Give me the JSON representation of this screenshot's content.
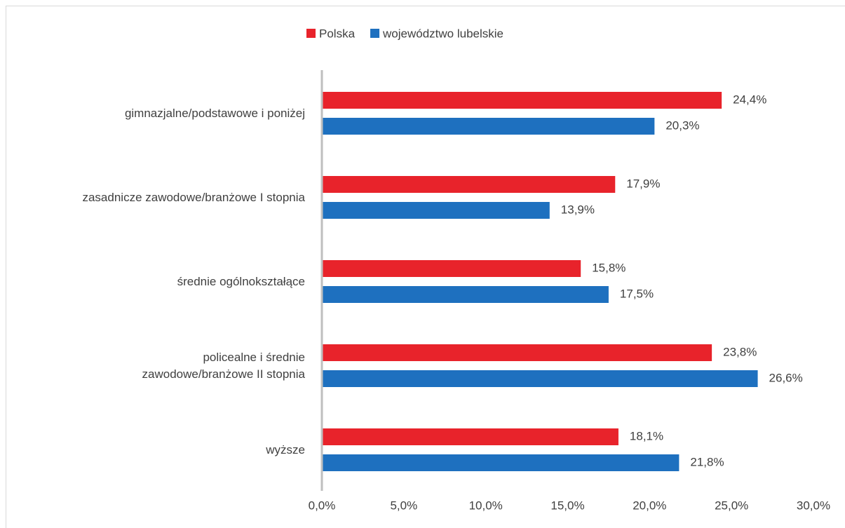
{
  "chart_data": {
    "type": "bar",
    "orientation": "horizontal",
    "categories": [
      "gimnazjalne/podstawowe i poniżej",
      "zasadnicze zawodowe/branżowe I stopnia",
      "średnie ogólnokształące",
      "policealne i średnie\nzawodowe/branżowe II stopnia",
      "wyższe"
    ],
    "series": [
      {
        "name": "Polska",
        "color": "#e8232b",
        "values": [
          24.4,
          17.9,
          15.8,
          23.8,
          18.1
        ],
        "value_labels": [
          "24,4%",
          "17,9%",
          "15,8%",
          "23,8%",
          "18,1%"
        ]
      },
      {
        "name": "województwo lubelskie",
        "color": "#1e70bf",
        "values": [
          20.3,
          13.9,
          17.5,
          26.6,
          21.8
        ],
        "value_labels": [
          "20,3%",
          "13,9%",
          "17,5%",
          "26,6%",
          "21,8%"
        ]
      }
    ],
    "xlim": [
      0,
      30
    ],
    "xticks": [
      {
        "value": 0,
        "label": "0,0%"
      },
      {
        "value": 5,
        "label": "5,0%"
      },
      {
        "value": 10,
        "label": "10,0%"
      },
      {
        "value": 15,
        "label": "15,0%"
      },
      {
        "value": 20,
        "label": "20,0%"
      },
      {
        "value": 25,
        "label": "25,0%"
      },
      {
        "value": 30,
        "label": "30,0%"
      }
    ],
    "grid": false,
    "legend": "top"
  }
}
